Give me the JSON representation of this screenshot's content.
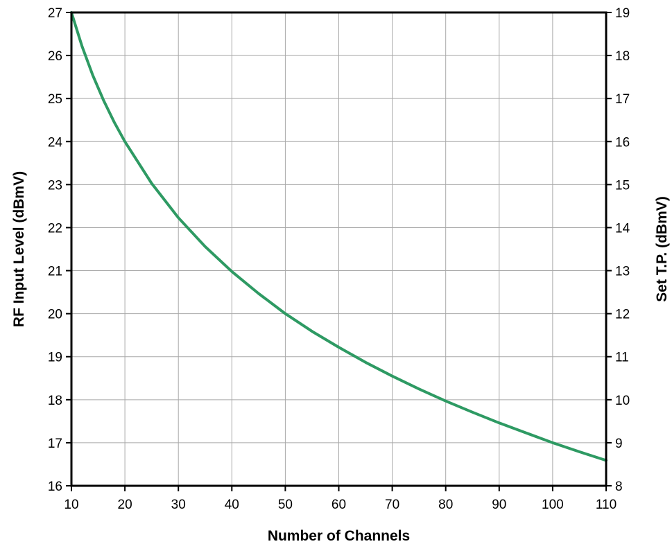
{
  "chart_data": {
    "type": "line",
    "title": "",
    "xlabel": "Number of Channels",
    "ylabel": "RF Input Level (dBmV)",
    "y2label": "Set T.P. (dBmV)",
    "xlim": [
      10,
      110
    ],
    "ylim": [
      16,
      27
    ],
    "y2lim": [
      8,
      19
    ],
    "x_ticks": [
      10,
      20,
      30,
      40,
      50,
      60,
      70,
      80,
      90,
      100,
      110
    ],
    "y_ticks": [
      16,
      17,
      18,
      19,
      20,
      21,
      22,
      23,
      24,
      25,
      26,
      27
    ],
    "y2_ticks": [
      8,
      9,
      10,
      11,
      12,
      13,
      14,
      15,
      16,
      17,
      18,
      19
    ],
    "grid": true,
    "series": [
      {
        "color": "#2e9a63",
        "x": [
          10,
          12,
          14,
          16,
          18,
          20,
          25,
          30,
          35,
          40,
          45,
          50,
          55,
          60,
          65,
          70,
          75,
          80,
          85,
          90,
          95,
          100,
          105,
          110
        ],
        "y": [
          27.0,
          26.21,
          25.54,
          24.96,
          24.45,
          24.0,
          23.03,
          22.23,
          21.56,
          20.98,
          20.47,
          20.0,
          19.59,
          19.22,
          18.87,
          18.55,
          18.25,
          17.97,
          17.71,
          17.46,
          17.23,
          17.0,
          16.79,
          16.59
        ]
      }
    ]
  }
}
